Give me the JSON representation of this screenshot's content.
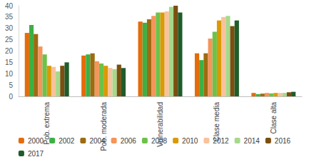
{
  "chart_data": {
    "type": "bar",
    "categories": [
      "Pob. extrema",
      "Pob. moderada",
      "Vulnerabilidad",
      "Clase media",
      "Clase alta"
    ],
    "series": [
      {
        "name": "2000",
        "color": "#e46c0a",
        "values": [
          28,
          18,
          33,
          19,
          1.5
        ]
      },
      {
        "name": "2002",
        "color": "#3cb043",
        "values": [
          31.5,
          18.5,
          32.5,
          16,
          1
        ]
      },
      {
        "name": "2004",
        "color": "#9c6b12",
        "values": [
          27.5,
          19,
          34,
          19,
          1.2
        ]
      },
      {
        "name": "2006",
        "color": "#f4955a",
        "values": [
          22,
          15.5,
          35.5,
          25.5,
          1.5
        ]
      },
      {
        "name": "2008",
        "color": "#6cc24a",
        "values": [
          18.5,
          14.5,
          37,
          28.5,
          1.3
        ]
      },
      {
        "name": "2010",
        "color": "#d99a06",
        "values": [
          13.5,
          13.5,
          37,
          33.5,
          1.5
        ]
      },
      {
        "name": "2012",
        "color": "#f8c29c",
        "values": [
          13,
          12.5,
          37.5,
          35,
          1.5
        ]
      },
      {
        "name": "2014",
        "color": "#a6d98a",
        "values": [
          11,
          12,
          39.5,
          35.5,
          1.5
        ]
      },
      {
        "name": "2016",
        "color": "#7a4f10",
        "values": [
          13.5,
          14,
          40,
          31,
          1.8
        ]
      },
      {
        "name": "2017",
        "color": "#1f5c2a",
        "values": [
          15,
          12.5,
          37,
          33.5,
          2
        ]
      }
    ],
    "ylim": [
      0,
      40
    ],
    "yticks": [
      0,
      5,
      10,
      15,
      20,
      25,
      30,
      35,
      40
    ],
    "grid": false,
    "legend": "bottom"
  }
}
